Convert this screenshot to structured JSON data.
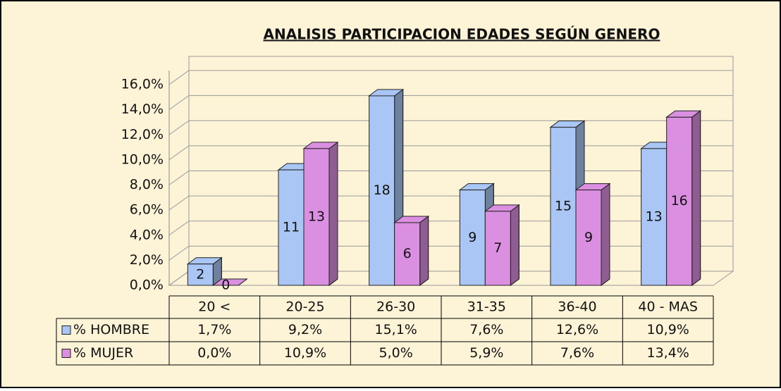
{
  "chart_data": {
    "type": "bar3d",
    "title": "ANALISIS PARTICIPACION EDADES SEGÚN GENERO",
    "categories": [
      "20 <",
      "20-25",
      "26-30",
      "31-35",
      "36-40",
      "40 -  MAS"
    ],
    "series": [
      {
        "name": "% HOMBRE",
        "color": "#a9c6f5",
        "values": [
          1.7,
          9.2,
          15.1,
          7.6,
          12.6,
          10.9
        ],
        "value_labels": [
          "1,7%",
          "9,2%",
          "15,1%",
          "7,6%",
          "12,6%",
          "10,9%"
        ],
        "counts": [
          2,
          11,
          18,
          9,
          15,
          13
        ]
      },
      {
        "name": "% MUJER",
        "color": "#da8fe0",
        "values": [
          0.0,
          10.9,
          5.0,
          5.9,
          7.6,
          13.4
        ],
        "value_labels": [
          "0,0%",
          "10,9%",
          "5,0%",
          "5,9%",
          "7,6%",
          "13,4%"
        ],
        "counts": [
          0,
          13,
          6,
          7,
          9,
          16
        ]
      }
    ],
    "ylim": [
      0,
      16
    ],
    "yticks": [
      {
        "value": 0,
        "label": "0,0%"
      },
      {
        "value": 2,
        "label": "2,0%"
      },
      {
        "value": 4,
        "label": "4,0%"
      },
      {
        "value": 6,
        "label": "6,0%"
      },
      {
        "value": 8,
        "label": "8,0%"
      },
      {
        "value": 10,
        "label": "10,0%"
      },
      {
        "value": 12,
        "label": "12,0%"
      },
      {
        "value": 14,
        "label": "14,0%"
      },
      {
        "value": 16,
        "label": "16,0%"
      }
    ],
    "grid": true
  }
}
